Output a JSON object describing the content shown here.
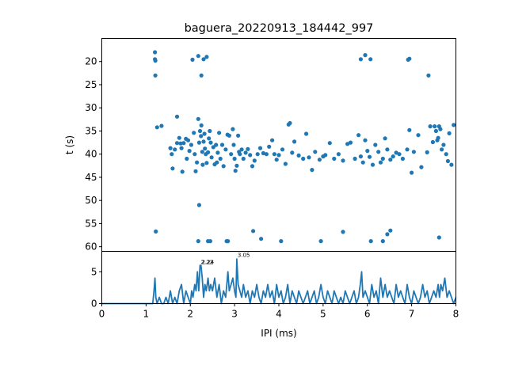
{
  "chart_data": [
    {
      "type": "scatter",
      "title": "baguera_20220913_184442_997",
      "xlabel": "",
      "ylabel": "t (s)",
      "xlim": [
        0,
        8
      ],
      "ylim": [
        61,
        15
      ],
      "y_inverted": true,
      "yticks": [
        "20",
        "25",
        "30",
        "35",
        "40",
        "45",
        "50",
        "55",
        "60"
      ],
      "yticks_values": [
        20,
        25,
        30,
        35,
        40,
        45,
        50,
        55,
        60
      ],
      "marker_color": "#1f77b4",
      "points": [
        [
          1.2,
          18.0
        ],
        [
          1.2,
          19.5
        ],
        [
          1.21,
          19.8
        ],
        [
          1.21,
          23.0
        ],
        [
          1.22,
          56.7
        ],
        [
          2.05,
          19.6
        ],
        [
          2.18,
          18.8
        ],
        [
          2.25,
          23.0
        ],
        [
          2.3,
          19.5
        ],
        [
          2.37,
          19.0
        ],
        [
          5.85,
          19.5
        ],
        [
          5.95,
          18.6
        ],
        [
          6.07,
          19.5
        ],
        [
          6.92,
          19.6
        ],
        [
          6.95,
          19.4
        ],
        [
          7.38,
          23.0
        ],
        [
          7.62,
          58.0
        ],
        [
          1.25,
          34.2
        ],
        [
          1.35,
          33.9
        ],
        [
          1.7,
          31.9
        ],
        [
          1.55,
          38.7
        ],
        [
          1.58,
          40.0
        ],
        [
          1.65,
          39.0
        ],
        [
          1.7,
          37.6
        ],
        [
          1.75,
          36.5
        ],
        [
          1.78,
          37.7
        ],
        [
          1.8,
          38.7
        ],
        [
          1.85,
          37.6
        ],
        [
          1.9,
          36.7
        ],
        [
          1.95,
          37.0
        ],
        [
          1.6,
          43.1
        ],
        [
          1.82,
          43.8
        ],
        [
          1.92,
          41.0
        ],
        [
          1.98,
          39.3
        ],
        [
          2.02,
          38.0
        ],
        [
          2.08,
          35.4
        ],
        [
          2.1,
          40.0
        ],
        [
          2.12,
          43.7
        ],
        [
          2.15,
          41.8
        ],
        [
          2.18,
          32.4
        ],
        [
          2.2,
          37.5
        ],
        [
          2.2,
          51.0
        ],
        [
          2.22,
          35.0
        ],
        [
          2.24,
          36.1
        ],
        [
          2.25,
          33.8
        ],
        [
          2.27,
          39.5
        ],
        [
          2.28,
          42.3
        ],
        [
          2.3,
          37.3
        ],
        [
          2.32,
          35.6
        ],
        [
          2.33,
          38.8
        ],
        [
          2.35,
          40.0
        ],
        [
          2.37,
          41.9
        ],
        [
          2.4,
          39.6
        ],
        [
          2.42,
          36.6
        ],
        [
          2.44,
          35.0
        ],
        [
          2.46,
          37.5
        ],
        [
          2.48,
          40.7
        ],
        [
          2.52,
          38.5
        ],
        [
          2.55,
          42.2
        ],
        [
          2.58,
          38.0
        ],
        [
          2.6,
          41.8
        ],
        [
          2.62,
          39.7
        ],
        [
          2.65,
          35.4
        ],
        [
          2.68,
          41.0
        ],
        [
          2.72,
          38.0
        ],
        [
          2.75,
          42.6
        ],
        [
          2.8,
          39.0
        ],
        [
          2.84,
          35.8
        ],
        [
          2.88,
          36.0
        ],
        [
          2.92,
          40.0
        ],
        [
          2.96,
          34.6
        ],
        [
          2.98,
          38.0
        ],
        [
          3.0,
          41.0
        ],
        [
          3.02,
          43.6
        ],
        [
          3.05,
          42.5
        ],
        [
          3.08,
          36.0
        ],
        [
          3.1,
          39.5
        ],
        [
          3.12,
          40.0
        ],
        [
          3.16,
          39.0
        ],
        [
          3.2,
          41.0
        ],
        [
          3.25,
          39.7
        ],
        [
          3.3,
          38.9
        ],
        [
          3.35,
          40.2
        ],
        [
          3.4,
          42.6
        ],
        [
          3.45,
          41.4
        ],
        [
          3.52,
          40.0
        ],
        [
          3.58,
          38.7
        ],
        [
          3.65,
          39.8
        ],
        [
          3.72,
          40.0
        ],
        [
          3.78,
          38.4
        ],
        [
          3.85,
          37.0
        ],
        [
          3.9,
          40.0
        ],
        [
          3.95,
          41.2
        ],
        [
          4.0,
          40.2
        ],
        [
          4.08,
          39.0
        ],
        [
          4.15,
          42.1
        ],
        [
          4.22,
          33.6
        ],
        [
          4.25,
          33.3
        ],
        [
          4.3,
          39.7
        ],
        [
          4.35,
          37.3
        ],
        [
          4.45,
          40.3
        ],
        [
          4.55,
          41.0
        ],
        [
          4.62,
          35.6
        ],
        [
          4.68,
          40.7
        ],
        [
          4.75,
          43.4
        ],
        [
          4.82,
          39.5
        ],
        [
          4.92,
          41.2
        ],
        [
          5.0,
          40.5
        ],
        [
          5.05,
          40.2
        ],
        [
          5.15,
          37.6
        ],
        [
          5.25,
          41.0
        ],
        [
          5.35,
          40.0
        ],
        [
          5.45,
          41.4
        ],
        [
          5.55,
          37.8
        ],
        [
          5.62,
          37.5
        ],
        [
          5.72,
          41.0
        ],
        [
          5.8,
          35.9
        ],
        [
          5.85,
          40.5
        ],
        [
          5.9,
          41.8
        ],
        [
          5.95,
          37.0
        ],
        [
          6.0,
          39.3
        ],
        [
          6.05,
          40.6
        ],
        [
          6.12,
          42.3
        ],
        [
          6.18,
          38.0
        ],
        [
          6.25,
          39.5
        ],
        [
          6.3,
          41.8
        ],
        [
          6.35,
          41.0
        ],
        [
          6.4,
          36.6
        ],
        [
          6.45,
          39.0
        ],
        [
          6.52,
          41.2
        ],
        [
          6.58,
          40.5
        ],
        [
          6.65,
          39.7
        ],
        [
          6.72,
          40.0
        ],
        [
          6.8,
          41.0
        ],
        [
          6.9,
          39.0
        ],
        [
          6.95,
          34.8
        ],
        [
          7.0,
          44.0
        ],
        [
          7.05,
          39.5
        ],
        [
          7.15,
          35.9
        ],
        [
          7.22,
          42.8
        ],
        [
          7.35,
          39.6
        ],
        [
          7.42,
          34.0
        ],
        [
          7.48,
          37.4
        ],
        [
          7.52,
          34.0
        ],
        [
          7.55,
          35.0
        ],
        [
          7.58,
          37.0
        ],
        [
          7.6,
          36.5
        ],
        [
          7.62,
          34.0
        ],
        [
          7.65,
          34.6
        ],
        [
          7.68,
          39.0
        ],
        [
          7.72,
          38.0
        ],
        [
          7.78,
          40.0
        ],
        [
          7.82,
          41.5
        ],
        [
          7.85,
          35.5
        ],
        [
          7.9,
          42.3
        ],
        [
          7.95,
          33.7
        ],
        [
          2.18,
          58.8
        ],
        [
          2.4,
          58.8
        ],
        [
          2.45,
          58.8
        ],
        [
          2.82,
          58.8
        ],
        [
          2.85,
          58.8
        ],
        [
          3.42,
          56.6
        ],
        [
          3.6,
          58.3
        ],
        [
          4.05,
          58.8
        ],
        [
          4.95,
          58.8
        ],
        [
          5.45,
          56.8
        ],
        [
          6.08,
          58.8
        ],
        [
          6.35,
          58.8
        ],
        [
          6.45,
          57.3
        ],
        [
          6.52,
          56.5
        ]
      ]
    },
    {
      "type": "line",
      "xlabel": "IPI (ms)",
      "ylabel": "",
      "xlim": [
        0,
        8
      ],
      "ylim": [
        0,
        8.2
      ],
      "xticks": [
        "0",
        "1",
        "2",
        "3",
        "4",
        "5",
        "6",
        "7",
        "8"
      ],
      "xticks_values": [
        0,
        1,
        2,
        3,
        4,
        5,
        6,
        7,
        8
      ],
      "yticks": [
        "0",
        "5"
      ],
      "yticks_values": [
        0,
        5
      ],
      "line_color": "#1f77b4",
      "peak_labels": [
        {
          "x": 2.22,
          "y": 6.1,
          "text": "2.22"
        },
        {
          "x": 2.24,
          "y": 6.1,
          "text": "2.24"
        },
        {
          "x": 3.05,
          "y": 7.2,
          "text": "3.05"
        }
      ],
      "x": [
        0,
        1.0,
        1.15,
        1.18,
        1.2,
        1.22,
        1.25,
        1.3,
        1.35,
        1.4,
        1.45,
        1.5,
        1.55,
        1.6,
        1.65,
        1.7,
        1.75,
        1.8,
        1.85,
        1.9,
        1.95,
        2.0,
        2.03,
        2.06,
        2.1,
        2.13,
        2.16,
        2.19,
        2.22,
        2.24,
        2.27,
        2.3,
        2.33,
        2.36,
        2.4,
        2.43,
        2.46,
        2.5,
        2.55,
        2.6,
        2.65,
        2.7,
        2.75,
        2.8,
        2.85,
        2.88,
        2.92,
        2.96,
        3.0,
        3.03,
        3.05,
        3.08,
        3.12,
        3.16,
        3.2,
        3.25,
        3.3,
        3.35,
        3.4,
        3.45,
        3.5,
        3.55,
        3.6,
        3.65,
        3.7,
        3.75,
        3.8,
        3.85,
        3.9,
        3.95,
        4.0,
        4.05,
        4.1,
        4.15,
        4.2,
        4.25,
        4.3,
        4.35,
        4.4,
        4.45,
        4.5,
        4.55,
        4.6,
        4.65,
        4.7,
        4.75,
        4.8,
        4.85,
        4.9,
        4.95,
        5.0,
        5.05,
        5.1,
        5.15,
        5.2,
        5.25,
        5.3,
        5.35,
        5.4,
        5.45,
        5.5,
        5.55,
        5.6,
        5.65,
        5.7,
        5.75,
        5.8,
        5.84,
        5.87,
        5.9,
        5.95,
        6.0,
        6.05,
        6.1,
        6.15,
        6.2,
        6.25,
        6.3,
        6.35,
        6.4,
        6.45,
        6.5,
        6.55,
        6.6,
        6.65,
        6.7,
        6.75,
        6.8,
        6.85,
        6.9,
        6.95,
        7.0,
        7.05,
        7.1,
        7.15,
        7.2,
        7.25,
        7.3,
        7.35,
        7.4,
        7.45,
        7.5,
        7.55,
        7.6,
        7.63,
        7.66,
        7.7,
        7.75,
        7.8,
        7.85,
        7.9,
        7.95,
        8.0
      ],
      "y": [
        0,
        0,
        0,
        2.0,
        4.0,
        1.0,
        0,
        1.0,
        0,
        0,
        1.0,
        0,
        2.0,
        0,
        1.0,
        0,
        2.0,
        3.0,
        0,
        2.0,
        1.0,
        0,
        2.0,
        1.0,
        3.0,
        2.0,
        5.0,
        2.0,
        6.0,
        6.0,
        4.0,
        1.0,
        3.0,
        2.0,
        4.0,
        2.0,
        3.0,
        2.0,
        4.0,
        1.0,
        3.0,
        0,
        2.0,
        1.0,
        5.0,
        2.0,
        3.0,
        4.0,
        2.0,
        1.0,
        7.0,
        3.0,
        2.0,
        1.0,
        3.0,
        1.0,
        2.0,
        0,
        2.0,
        1.0,
        3.0,
        1.0,
        0,
        2.0,
        1.0,
        3.0,
        1.0,
        2.0,
        0,
        3.0,
        1.0,
        2.0,
        0,
        1.0,
        3.0,
        0,
        2.0,
        1.0,
        0,
        2.0,
        1.0,
        0,
        1.0,
        2.0,
        0,
        1.0,
        2.0,
        0,
        1.0,
        3.0,
        1.0,
        0,
        2.0,
        1.0,
        0,
        2.0,
        1.0,
        0,
        1.0,
        0,
        2.0,
        1.0,
        0,
        1.0,
        2.0,
        0,
        1.0,
        3.0,
        5.0,
        1.0,
        2.0,
        1.0,
        0,
        3.0,
        1.0,
        2.0,
        0,
        4.0,
        1.0,
        3.0,
        1.0,
        2.0,
        1.0,
        0,
        3.0,
        1.0,
        2.0,
        1.0,
        0,
        3.0,
        1.0,
        0,
        2.0,
        1.0,
        0,
        1.0,
        3.0,
        1.0,
        2.0,
        0,
        1.0,
        2.0,
        1.0,
        3.0,
        1.0,
        3.0,
        2.0,
        4.0,
        1.0,
        2.0,
        1.0,
        0,
        1.0
      ]
    }
  ]
}
